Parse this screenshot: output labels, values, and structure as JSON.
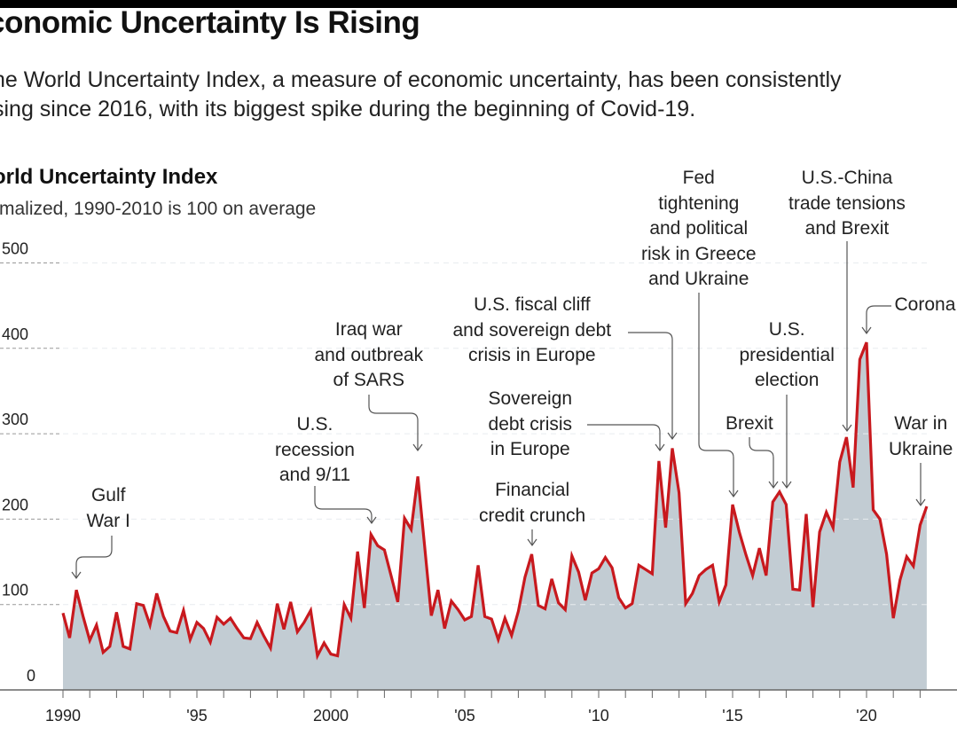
{
  "header": {
    "title": "conomic Uncertainty Is Rising",
    "subtitle_lines": [
      "he World Uncertainty Index, a measure of economic uncertainty, has been consistently",
      "sing since 2016, with its biggest spike during the beginning of Covid-19."
    ]
  },
  "chart_data": {
    "type": "area",
    "title": "orld Uncertainty Index",
    "subtitle": "rmalized, 1990-2010 is 100 on average",
    "xlabel": "",
    "ylabel": "",
    "ylim": [
      0,
      500
    ],
    "xlim": [
      1990,
      2022.25
    ],
    "y_ticks": [
      0,
      100,
      200,
      300,
      400,
      500
    ],
    "y_tick_labels": [
      "0",
      "100",
      "200",
      "300",
      "400",
      "500"
    ],
    "x_ticks": [
      1990,
      1995,
      2000,
      2005,
      2010,
      2015,
      2020
    ],
    "x_tick_labels": [
      "1990",
      "'95",
      "2000",
      "'05",
      "'10",
      "'15",
      "'20"
    ],
    "grid": "horizontal dashed",
    "frequency": "quarterly",
    "start": 1990.0,
    "step": 0.25,
    "colors": {
      "line": "#c8191e",
      "fill": "#c2ccd3",
      "axis": "#666666",
      "grid": "#999999"
    },
    "values": [
      90,
      61,
      117,
      86,
      58,
      76,
      44,
      51,
      91,
      51,
      48,
      101,
      99,
      76,
      113,
      86,
      69,
      67,
      93,
      59,
      79,
      72,
      56,
      85,
      77,
      84,
      72,
      61,
      60,
      79,
      63,
      49,
      101,
      71,
      103,
      68,
      79,
      93,
      40,
      55,
      42,
      40,
      100,
      84,
      162,
      96,
      182,
      169,
      164,
      134,
      103,
      201,
      188,
      250,
      169,
      87,
      117,
      72,
      104,
      94,
      82,
      86,
      146,
      86,
      83,
      59,
      84,
      64,
      92,
      132,
      159,
      99,
      95,
      130,
      102,
      94,
      157,
      138,
      105,
      137,
      142,
      155,
      143,
      108,
      96,
      101,
      146,
      141,
      136,
      268,
      190,
      283,
      231,
      101,
      113,
      134,
      141,
      146,
      103,
      123,
      217,
      185,
      158,
      134,
      166,
      134,
      220,
      232,
      217,
      118,
      117,
      206,
      97,
      185,
      208,
      190,
      267,
      296,
      237,
      387,
      407,
      211,
      200,
      159,
      84,
      129,
      156,
      145,
      193,
      215
    ],
    "annotations": [
      {
        "id": "gulf",
        "lines": [
          "Gulf",
          "War I"
        ],
        "x": 1990.5
      },
      {
        "id": "recession",
        "lines": [
          "U.S.",
          "recession",
          "and 9/11"
        ],
        "x": 2001.5
      },
      {
        "id": "iraq",
        "lines": [
          "Iraq war",
          "and outbreak",
          "of SARS"
        ],
        "x": 2003.25
      },
      {
        "id": "fiscal",
        "lines": [
          "U.S. fiscal cliff",
          "and sovereign debt",
          "crisis in Europe"
        ],
        "x": 2012.75
      },
      {
        "id": "sovereign",
        "lines": [
          "Sovereign",
          "debt crisis",
          "in Europe"
        ],
        "x": 2012.25
      },
      {
        "id": "financial",
        "lines": [
          "Financial",
          "credit crunch"
        ],
        "x": 2007.5
      },
      {
        "id": "fed",
        "lines": [
          "Fed",
          "tightening",
          "and political",
          "risk in Greece",
          "and Ukraine"
        ],
        "x": 2015.0
      },
      {
        "id": "brexit",
        "lines": [
          "Brexit"
        ],
        "x": 2016.5
      },
      {
        "id": "election",
        "lines": [
          "U.S.",
          "presidential",
          "election"
        ],
        "x": 2016.75
      },
      {
        "id": "tradewar",
        "lines": [
          "U.S.-China",
          "trade tensions",
          "and Brexit"
        ],
        "x": 2019.25
      },
      {
        "id": "corona",
        "lines": [
          "Corona"
        ],
        "x": 2020.0
      },
      {
        "id": "ukraine",
        "lines": [
          "War in",
          "Ukraine"
        ],
        "x": 2022.0
      }
    ]
  }
}
